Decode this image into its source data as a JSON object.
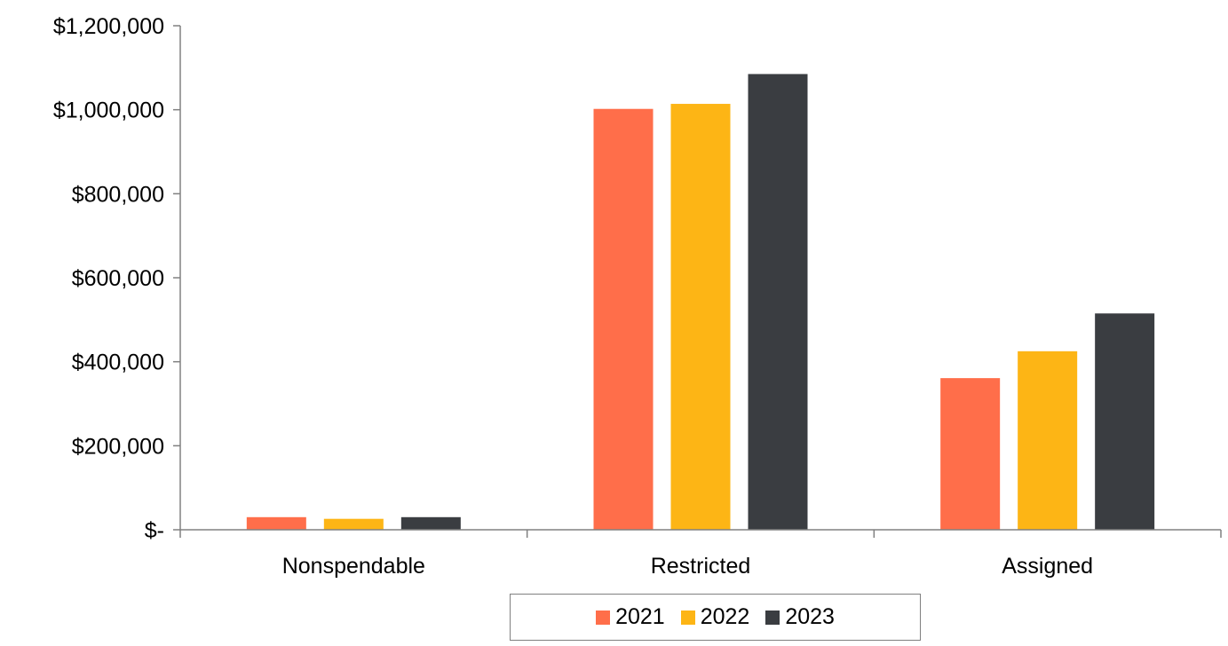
{
  "chart_data": {
    "type": "bar",
    "categories": [
      "Nonspendable",
      "Restricted",
      "Assigned"
    ],
    "series": [
      {
        "name": "2021",
        "color": "#FF6E4A",
        "values": [
          30000,
          1002000,
          361000
        ]
      },
      {
        "name": "2022",
        "color": "#FDB515",
        "values": [
          26000,
          1014000,
          425000
        ]
      },
      {
        "name": "2023",
        "color": "#3A3D41",
        "values": [
          30000,
          1085000,
          515000
        ]
      }
    ],
    "ylim": [
      0,
      1200000
    ],
    "yticks": [
      0,
      200000,
      400000,
      600000,
      800000,
      1000000,
      1200000
    ],
    "ytick_labels": [
      "$-",
      "$200,000",
      "$400,000",
      "$600,000",
      "$800,000",
      "$1,000,000",
      "$1,200,000"
    ],
    "legend_position": "bottom",
    "grid": false
  }
}
